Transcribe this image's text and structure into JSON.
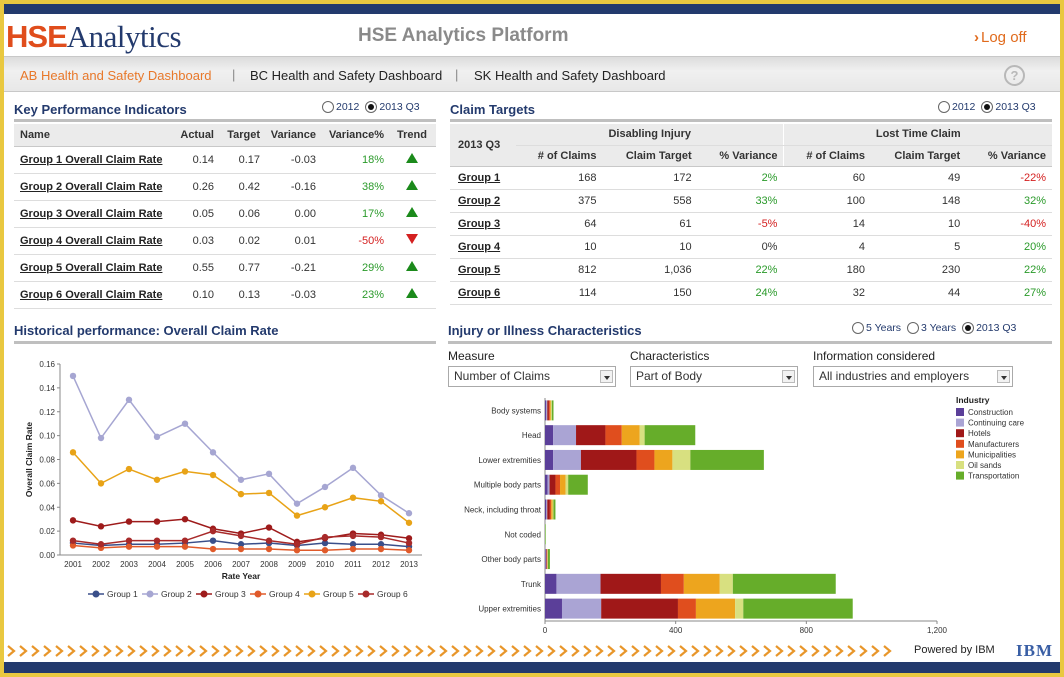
{
  "header": {
    "logo_part1": "HSE",
    "logo_part2": "Analytics",
    "app_title": "HSE Analytics Platform",
    "logout_label": "Log off"
  },
  "nav": {
    "tabs": [
      {
        "label": "AB Health and Safety Dashboard",
        "active": true
      },
      {
        "label": "BC Health and Safety Dashboard",
        "active": false
      },
      {
        "label": "SK Health and Safety Dashboard",
        "active": false
      }
    ],
    "separator": "|",
    "help_label": "?"
  },
  "kpi": {
    "title": "Key Performance Indicators",
    "period_options": [
      "2012",
      "2013 Q3"
    ],
    "selected_period": "2013 Q3",
    "columns": [
      "Name",
      "Actual",
      "Target",
      "Variance",
      "Variance%",
      "Trend"
    ],
    "rows": [
      {
        "name": "Group 1 Overall Claim Rate",
        "actual": "0.14",
        "target": "0.17",
        "variance": "-0.03",
        "variance_pct": "18%",
        "trend": "up"
      },
      {
        "name": "Group 2 Overall Claim Rate",
        "actual": "0.26",
        "target": "0.42",
        "variance": "-0.16",
        "variance_pct": "38%",
        "trend": "up"
      },
      {
        "name": "Group 3 Overall Claim Rate",
        "actual": "0.05",
        "target": "0.06",
        "variance": "0.00",
        "variance_pct": "17%",
        "trend": "up"
      },
      {
        "name": "Group 4 Overall Claim Rate",
        "actual": "0.03",
        "target": "0.02",
        "variance": "0.01",
        "variance_pct": "-50%",
        "trend": "down"
      },
      {
        "name": "Group 5 Overall Claim Rate",
        "actual": "0.55",
        "target": "0.77",
        "variance": "-0.21",
        "variance_pct": "29%",
        "trend": "up"
      },
      {
        "name": "Group 6 Overall Claim Rate",
        "actual": "0.10",
        "target": "0.13",
        "variance": "-0.03",
        "variance_pct": "23%",
        "trend": "up"
      }
    ]
  },
  "claim_targets": {
    "title": "Claim Targets",
    "period_options": [
      "2012",
      "2013 Q3"
    ],
    "selected_period": "2013 Q3",
    "period_header": "2013 Q3",
    "group_headers": [
      "Disabling Injury",
      "Lost Time Claim"
    ],
    "sub_columns": [
      "# of Claims",
      "Claim Target",
      "% Variance",
      "# of Claims",
      "Claim Target",
      "% Variance"
    ],
    "rows": [
      {
        "name": "Group 1",
        "cells": [
          "168",
          "172",
          "2%",
          "60",
          "49",
          "-22%"
        ]
      },
      {
        "name": "Group 2",
        "cells": [
          "375",
          "558",
          "33%",
          "100",
          "148",
          "32%"
        ]
      },
      {
        "name": "Group 3",
        "cells": [
          "64",
          "61",
          "-5%",
          "14",
          "10",
          "-40%"
        ]
      },
      {
        "name": "Group 4",
        "cells": [
          "10",
          "10",
          "0%",
          "4",
          "5",
          "20%"
        ]
      },
      {
        "name": "Group 5",
        "cells": [
          "812",
          "1,036",
          "22%",
          "180",
          "230",
          "22%"
        ]
      },
      {
        "name": "Group 6",
        "cells": [
          "114",
          "150",
          "24%",
          "32",
          "44",
          "27%"
        ]
      }
    ]
  },
  "historical": {
    "title": "Historical performance: Overall Claim Rate"
  },
  "injury": {
    "title": "Injury or Illness Characteristics",
    "period_options": [
      "5 Years",
      "3 Years",
      "2013 Q3"
    ],
    "selected_period": "2013 Q3",
    "measure_label": "Measure",
    "measure_value": "Number of Claims",
    "characteristics_label": "Characteristics",
    "characteristics_value": "Part of Body",
    "info_label": "Information considered",
    "info_value": "All industries and employers"
  },
  "footer": {
    "powered_by": "Powered by IBM",
    "ibm_logo": "IBM"
  },
  "colors": {
    "navy": "#233a6d",
    "orange": "#e8782a",
    "gold_border": "#e9c840",
    "positive": "#2a9a2a",
    "negative": "#d42020"
  },
  "chart_data": [
    {
      "type": "line",
      "xlabel": "Rate Year",
      "ylabel": "Overall Claim Rate",
      "x": [
        "2001",
        "2002",
        "2003",
        "2004",
        "2005",
        "2006",
        "2007",
        "2008",
        "2009",
        "2010",
        "2011",
        "2012",
        "2013"
      ],
      "ylim": [
        0,
        0.16
      ],
      "yticks": [
        "0.00",
        "0.02",
        "0.04",
        "0.06",
        "0.08",
        "0.10",
        "0.12",
        "0.14",
        "0.16"
      ],
      "grid": false,
      "legend": "bottom",
      "series": [
        {
          "name": "Group 1",
          "color": "#3a4f8a",
          "values": [
            0.01,
            0.008,
            0.009,
            0.009,
            0.01,
            0.012,
            0.009,
            0.01,
            0.008,
            0.01,
            0.009,
            0.009,
            0.007
          ]
        },
        {
          "name": "Group 2",
          "color": "#a6a6d2",
          "values": [
            0.15,
            0.098,
            0.13,
            0.099,
            0.11,
            0.086,
            0.063,
            0.068,
            0.043,
            0.057,
            0.073,
            0.05,
            0.035
          ]
        },
        {
          "name": "Group 3",
          "color": "#9e1b1b",
          "values": [
            0.029,
            0.024,
            0.028,
            0.028,
            0.03,
            0.022,
            0.018,
            0.023,
            0.011,
            0.014,
            0.018,
            0.017,
            0.014
          ]
        },
        {
          "name": "Group 4",
          "color": "#e05a2a",
          "values": [
            0.008,
            0.006,
            0.007,
            0.007,
            0.007,
            0.005,
            0.005,
            0.005,
            0.004,
            0.004,
            0.005,
            0.005,
            0.004
          ]
        },
        {
          "name": "Group 5",
          "color": "#e8a317",
          "values": [
            0.086,
            0.06,
            0.072,
            0.063,
            0.07,
            0.067,
            0.051,
            0.052,
            0.033,
            0.04,
            0.048,
            0.045,
            0.027
          ]
        },
        {
          "name": "Group 6",
          "color": "#a82a2a",
          "values": [
            0.012,
            0.009,
            0.012,
            0.012,
            0.012,
            0.02,
            0.016,
            0.012,
            0.009,
            0.015,
            0.016,
            0.015,
            0.01
          ]
        }
      ]
    },
    {
      "type": "bar",
      "orientation": "horizontal",
      "stacked": true,
      "categories": [
        "Body systems",
        "Head",
        "Lower extremities",
        "Multiple body parts",
        "Neck, including throat",
        "Not coded",
        "Other body parts",
        "Trunk",
        "Upper extremities"
      ],
      "xlim": [
        0,
        1200
      ],
      "xticks": [
        "0",
        "400",
        "800",
        "1,200"
      ],
      "legend_title": "Industry",
      "legend": "top-right",
      "series": [
        {
          "name": "Construction",
          "color": "#5b3f99",
          "values": [
            3,
            25,
            25,
            8,
            4,
            0,
            2,
            35,
            52
          ]
        },
        {
          "name": "Continuing care",
          "color": "#aaa4d4",
          "values": [
            4,
            70,
            85,
            6,
            3,
            0,
            2,
            135,
            120
          ]
        },
        {
          "name": "Hotels",
          "color": "#a01818",
          "values": [
            5,
            90,
            170,
            18,
            8,
            0,
            2,
            185,
            235
          ]
        },
        {
          "name": "Manufacturers",
          "color": "#e04e1e",
          "values": [
            3,
            50,
            55,
            14,
            4,
            0,
            1,
            70,
            55
          ]
        },
        {
          "name": "Municipalities",
          "color": "#eda51e",
          "values": [
            3,
            55,
            55,
            17,
            4,
            0,
            1,
            110,
            120
          ]
        },
        {
          "name": "Oil sands",
          "color": "#d8e080",
          "values": [
            3,
            15,
            55,
            8,
            3,
            0,
            1,
            40,
            25
          ]
        },
        {
          "name": "Transportation",
          "color": "#66ad2a",
          "values": [
            5,
            155,
            225,
            60,
            6,
            2,
            6,
            315,
            335
          ]
        }
      ]
    }
  ]
}
